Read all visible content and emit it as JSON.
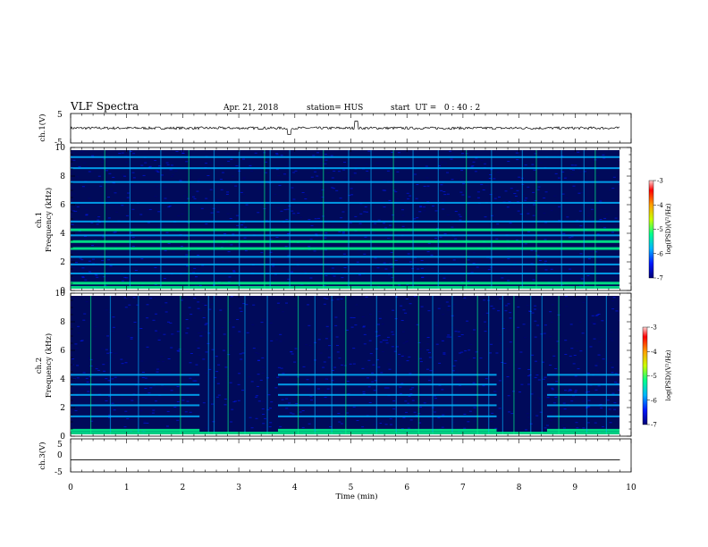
{
  "header": {
    "title": "VLF Spectra",
    "date": "Apr. 21, 2018",
    "station": "station= HUS",
    "start_ut": "start  UT =   0 : 40 : 2"
  },
  "colors": {
    "colormap": [
      "#000078",
      "#0018ff",
      "#00b4ff",
      "#00ff8c",
      "#c8ff00",
      "#ffa000",
      "#ff0000",
      "#ffd2d2"
    ],
    "background_spectrogram": "#000a5a",
    "trace": "#000000"
  },
  "chart_data": [
    {
      "type": "line",
      "name": "ch1-waveform",
      "ylabel": "ch.1(V)",
      "ylim": [
        -5,
        5
      ],
      "yticks": [
        "5",
        "-5"
      ],
      "x": [
        0,
        2.5,
        3.9,
        5.1,
        7.5,
        9.8
      ],
      "y": [
        0.1,
        0.2,
        -1.6,
        1.8,
        0.1,
        0.0
      ]
    },
    {
      "type": "heatmap",
      "name": "ch1-spectrogram",
      "ylabel": "ch.1\nFrequency (kHz)",
      "ylim": [
        0,
        10
      ],
      "yticks": [
        "0",
        "2",
        "4",
        "6",
        "8",
        "10"
      ],
      "xlim": [
        0,
        9.8
      ],
      "colorbar": {
        "label": "log(PSD)(V²/Hz)",
        "range": [
          -7,
          -3
        ],
        "ticks": [
          "-3",
          "-4",
          "-5",
          "-6",
          "-7"
        ]
      },
      "persistent_bands_khz": [
        0.4,
        1.1,
        1.75,
        2.3,
        2.9,
        3.4,
        3.85,
        4.25,
        4.85,
        6.2,
        7.7,
        8.7,
        9.5
      ],
      "bright_bands_khz": [
        0.4,
        2.9,
        3.4,
        4.25
      ],
      "impulse_times_min": [
        0.6,
        1.05,
        1.6,
        2.1,
        2.55,
        3.0,
        3.45,
        3.55,
        3.9,
        4.5,
        4.95,
        5.35,
        5.75,
        6.1,
        6.55,
        7.05,
        7.5,
        8.05,
        8.3,
        8.75,
        9.15,
        9.35
      ]
    },
    {
      "type": "heatmap",
      "name": "ch2-spectrogram",
      "ylabel": "ch.2\nFrequency (kHz)",
      "ylim": [
        0,
        10
      ],
      "yticks": [
        "0",
        "2",
        "4",
        "6",
        "8",
        "10"
      ],
      "xlim": [
        0,
        9.8
      ],
      "colorbar": {
        "label": "log(PSD)(V²/Hz)",
        "range": [
          -7,
          -3
        ],
        "ticks": [
          "-3",
          "-4",
          "-5",
          "-6",
          "-7"
        ]
      },
      "harmonic_bands_khz": [
        0.3,
        1.3,
        2.1,
        2.85,
        3.6,
        4.3
      ],
      "top_band_khz": 4.3,
      "band_fade_intervals_min": [
        [
          2.3,
          3.7
        ],
        [
          7.6,
          8.5
        ]
      ],
      "impulse_times_min": [
        0.35,
        0.7,
        1.2,
        1.95,
        2.45,
        2.55,
        2.8,
        3.1,
        3.5,
        4.05,
        4.35,
        4.65,
        4.9,
        5.45,
        5.8,
        6.2,
        6.45,
        6.8,
        7.25,
        7.45,
        7.7,
        7.9,
        8.2,
        8.4,
        8.7,
        9.2,
        9.55
      ]
    },
    {
      "type": "line",
      "name": "ch3-waveform",
      "ylabel": "ch.3(V)",
      "ylim": [
        -5,
        5
      ],
      "yticks": [
        "5",
        "0",
        "-5"
      ],
      "x": [
        0,
        9.8
      ],
      "y": [
        -1.5,
        -1.5
      ]
    }
  ],
  "xaxis": {
    "label": "Time  (min)",
    "xlim": [
      0,
      10
    ],
    "ticks": [
      "0",
      "1",
      "2",
      "3",
      "4",
      "5",
      "6",
      "7",
      "8",
      "9",
      "10"
    ]
  }
}
